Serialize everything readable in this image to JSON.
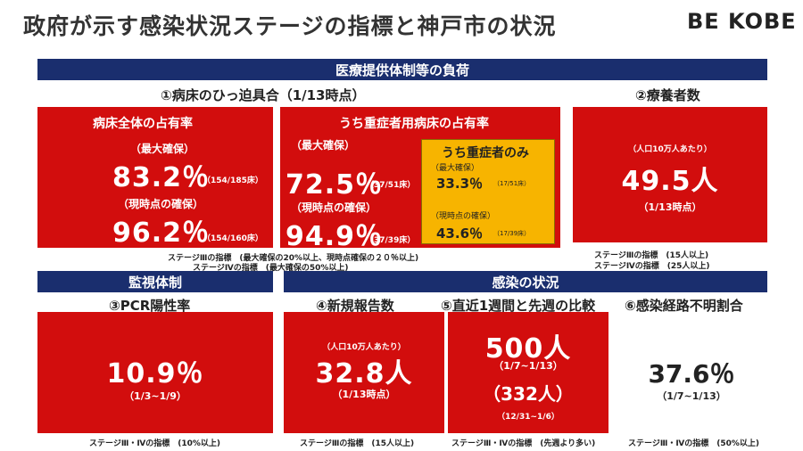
{
  "title": "政府が示す感染状況ステージの指標と神戸市の状況",
  "logo": "BE KOBE",
  "section_medical": "医療提供体制等の負荷",
  "section_monitoring": "監視体制",
  "section_infection": "感染の状況",
  "bed": {
    "header": "①病床のひっ迫具合（1/13時点）",
    "overall": {
      "title": "病床全体の占有率",
      "max_label": "（最大確保）",
      "max_value": "83.2％",
      "max_detail": "（154/185床）",
      "cur_label": "（現時点の確保）",
      "cur_value": "96.2％",
      "cur_detail": "（154/160床）"
    },
    "severe": {
      "title": "うち重症者用病床の占有率",
      "max_label": "（最大確保）",
      "max_value": "72.5％",
      "max_detail": "（37/51床）",
      "cur_label": "（現時点の確保）",
      "cur_value": "94.9％",
      "cur_detail": "（37/39床）"
    },
    "severe_only": {
      "title": "うち重症者のみ",
      "max_label": "（最大確保）",
      "max_value": "33.3％",
      "max_detail": "（17/51床）",
      "cur_label": "（現時点の確保）",
      "cur_value": "43.6％",
      "cur_detail": "（17/39床）"
    },
    "note1": "ステージⅢの指標　(最大確保の20%以上、現時点確保の２０％以上)",
    "note2": "ステージⅣの指標　(最大確保の50%以上)"
  },
  "recuperating": {
    "header": "②療養者数",
    "sub": "（人口10万人あたり）",
    "value": "49.5人",
    "date": "（1/13時点）",
    "note1": "ステージⅢの指標　(15人以上)",
    "note2": "ステージⅣの指標　(25人以上)"
  },
  "pcr": {
    "header": "③PCR陽性率",
    "value": "10.9％",
    "date": "（1/3~1/9）",
    "note": "ステージⅢ・Ⅳの指標　(10%以上)"
  },
  "new_cases": {
    "header": "④新規報告数",
    "sub": "（人口10万人あたり）",
    "value": "32.8人",
    "date": "（1/13時点）",
    "note": "ステージⅢの指標　(15人以上)"
  },
  "weekly": {
    "header": "⑤直近1週間と先週の比較",
    "value": "500人",
    "date": "（1/7~1/13）",
    "prev_value": "（332人）",
    "prev_date": "（12/31~1/6）",
    "note": "ステージⅢ・Ⅳの指標　(先週より多い)"
  },
  "unknown": {
    "header": "⑥感染経路不明割合",
    "value": "37.6％",
    "date": "（1/7~1/13）",
    "note": "ステージⅢ・Ⅳの指標　(50%以上)"
  },
  "colors": {
    "navy": "#1a2e6e",
    "red": "#d20d0d",
    "gold": "#f7b400"
  }
}
